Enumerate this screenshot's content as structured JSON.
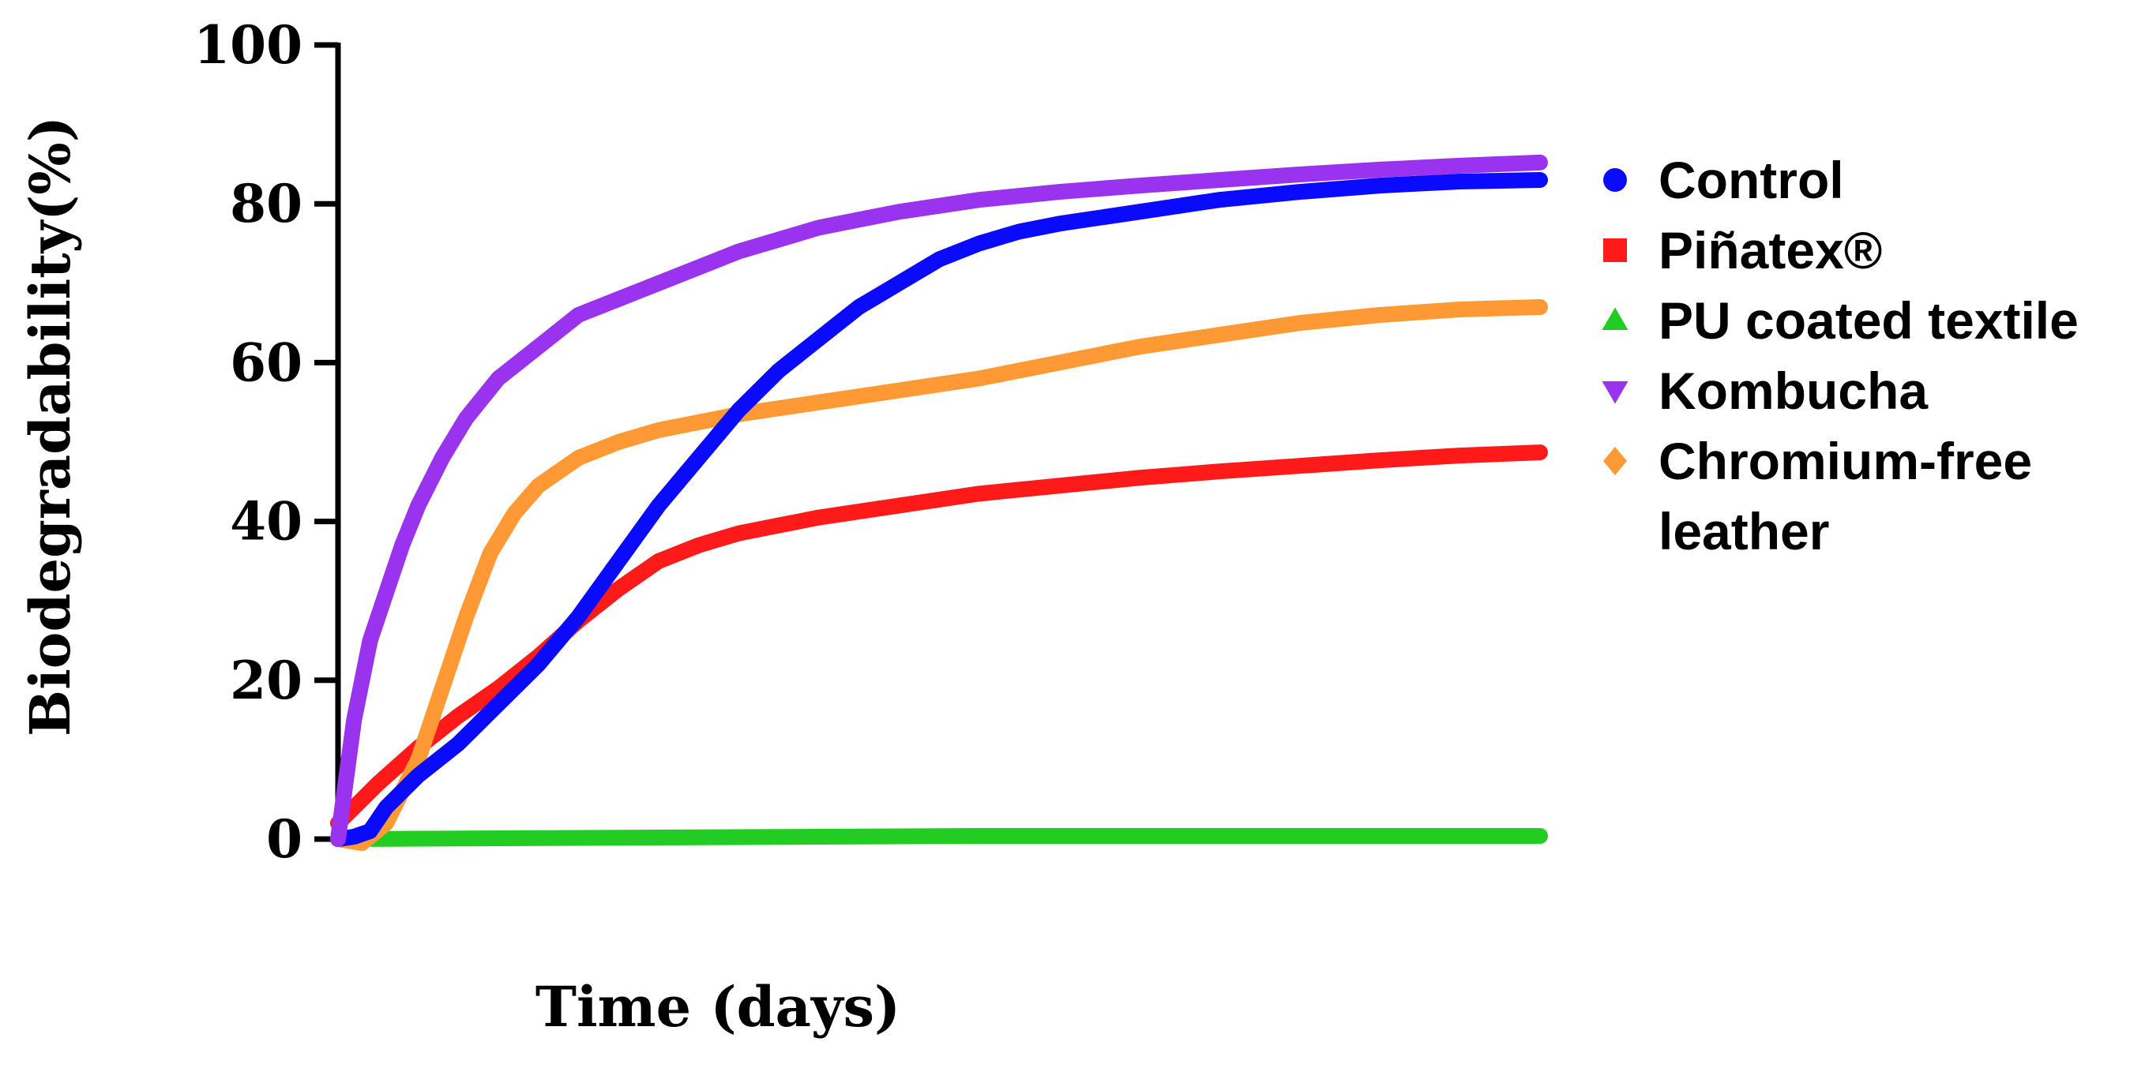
{
  "chart_data": {
    "type": "line",
    "xlabel": "Time (days)",
    "ylabel": "Biodegradability(%)",
    "ylim": [
      0,
      100
    ],
    "xlim": [
      0,
      150
    ],
    "x_ticks_shown": false,
    "yticks": [
      0,
      20,
      40,
      60,
      80,
      100
    ],
    "ytick_labels": [
      "0",
      "20",
      "40",
      "60",
      "80",
      "100"
    ],
    "grid": false,
    "legend_position": "right",
    "series": [
      {
        "name": "Control",
        "color": "#0a0aff",
        "marker": "circle",
        "points": [
          [
            0,
            0
          ],
          [
            2,
            0.3
          ],
          [
            4,
            1
          ],
          [
            6,
            4
          ],
          [
            10,
            8
          ],
          [
            15,
            12
          ],
          [
            20,
            17
          ],
          [
            25,
            22
          ],
          [
            30,
            28
          ],
          [
            35,
            35
          ],
          [
            40,
            42
          ],
          [
            45,
            48
          ],
          [
            50,
            54
          ],
          [
            55,
            59
          ],
          [
            60,
            63
          ],
          [
            65,
            67
          ],
          [
            70,
            70
          ],
          [
            75,
            73
          ],
          [
            80,
            75
          ],
          [
            85,
            76.5
          ],
          [
            90,
            77.5
          ],
          [
            100,
            79
          ],
          [
            110,
            80.5
          ],
          [
            120,
            81.5
          ],
          [
            130,
            82.3
          ],
          [
            140,
            82.8
          ],
          [
            150,
            83
          ]
        ]
      },
      {
        "name": "Piñatex®",
        "color": "#ff1a1a",
        "marker": "square",
        "points": [
          [
            0,
            2
          ],
          [
            2,
            4
          ],
          [
            5,
            7
          ],
          [
            10,
            11.5
          ],
          [
            15,
            15.5
          ],
          [
            20,
            19
          ],
          [
            25,
            23
          ],
          [
            30,
            27.5
          ],
          [
            35,
            31.5
          ],
          [
            40,
            35
          ],
          [
            45,
            37
          ],
          [
            50,
            38.5
          ],
          [
            55,
            39.5
          ],
          [
            60,
            40.5
          ],
          [
            70,
            42
          ],
          [
            80,
            43.5
          ],
          [
            90,
            44.5
          ],
          [
            100,
            45.5
          ],
          [
            110,
            46.3
          ],
          [
            120,
            47
          ],
          [
            130,
            47.7
          ],
          [
            140,
            48.3
          ],
          [
            150,
            48.7
          ]
        ]
      },
      {
        "name": "PU coated textile",
        "color": "#22cc22",
        "marker": "triangle-up",
        "points": [
          [
            0,
            0
          ],
          [
            20,
            0.1
          ],
          [
            40,
            0.2
          ],
          [
            60,
            0.3
          ],
          [
            80,
            0.4
          ],
          [
            100,
            0.4
          ],
          [
            120,
            0.4
          ],
          [
            140,
            0.4
          ],
          [
            150,
            0.4
          ]
        ]
      },
      {
        "name": "Kombucha",
        "color": "#9933ee",
        "marker": "triangle-down",
        "points": [
          [
            0,
            0
          ],
          [
            2,
            15
          ],
          [
            4,
            25
          ],
          [
            6,
            31
          ],
          [
            8,
            37
          ],
          [
            10,
            42
          ],
          [
            13,
            48
          ],
          [
            16,
            53
          ],
          [
            20,
            58
          ],
          [
            25,
            62
          ],
          [
            30,
            66
          ],
          [
            35,
            68
          ],
          [
            40,
            70
          ],
          [
            45,
            72
          ],
          [
            50,
            74
          ],
          [
            55,
            75.5
          ],
          [
            60,
            77
          ],
          [
            65,
            78
          ],
          [
            70,
            79
          ],
          [
            80,
            80.5
          ],
          [
            90,
            81.5
          ],
          [
            100,
            82.3
          ],
          [
            110,
            83
          ],
          [
            120,
            83.7
          ],
          [
            130,
            84.3
          ],
          [
            140,
            84.8
          ],
          [
            150,
            85.2
          ]
        ]
      },
      {
        "name": "Chromium-free leather",
        "name_lines": [
          "Chromium-free",
          "leather"
        ],
        "color": "#ff9933",
        "marker": "diamond",
        "points": [
          [
            0,
            0
          ],
          [
            3,
            -0.5
          ],
          [
            6,
            2
          ],
          [
            10,
            10
          ],
          [
            13,
            19
          ],
          [
            16,
            28
          ],
          [
            19,
            36
          ],
          [
            22,
            41
          ],
          [
            25,
            44.5
          ],
          [
            30,
            48
          ],
          [
            35,
            50
          ],
          [
            40,
            51.5
          ],
          [
            45,
            52.5
          ],
          [
            50,
            53.5
          ],
          [
            60,
            55
          ],
          [
            70,
            56.5
          ],
          [
            80,
            58
          ],
          [
            90,
            60
          ],
          [
            100,
            62
          ],
          [
            110,
            63.5
          ],
          [
            120,
            65
          ],
          [
            130,
            66
          ],
          [
            140,
            66.7
          ],
          [
            150,
            67
          ]
        ]
      }
    ]
  }
}
